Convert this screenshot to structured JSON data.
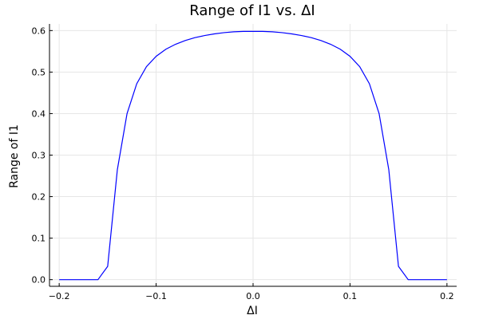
{
  "chart_data": {
    "type": "line",
    "title": "Range of I1 vs. ΔI",
    "xlabel": "ΔI",
    "ylabel": "Range of I1",
    "xlim": [
      -0.21,
      0.21
    ],
    "ylim": [
      -0.016,
      0.616
    ],
    "xticks": [
      -0.2,
      -0.1,
      0.0,
      0.1,
      0.2
    ],
    "xtick_labels": [
      "−0.2",
      "−0.1",
      "0.0",
      "0.1",
      "0.2"
    ],
    "yticks": [
      0.0,
      0.1,
      0.2,
      0.3,
      0.4,
      0.5,
      0.6
    ],
    "ytick_labels": [
      "0.0",
      "0.1",
      "0.2",
      "0.3",
      "0.4",
      "0.5",
      "0.6"
    ],
    "grid": true,
    "legend": "none",
    "series": [
      {
        "color": "#0000ff",
        "x": [
          -0.2,
          -0.19,
          -0.18,
          -0.17,
          -0.16,
          -0.15,
          -0.14,
          -0.13,
          -0.12,
          -0.11,
          -0.1,
          -0.09,
          -0.08,
          -0.07,
          -0.06,
          -0.05,
          -0.04,
          -0.03,
          -0.02,
          -0.01,
          0.0,
          0.01,
          0.02,
          0.03,
          0.04,
          0.05,
          0.06,
          0.07,
          0.08,
          0.09,
          0.1,
          0.11,
          0.12,
          0.13,
          0.14,
          0.15,
          0.16,
          0.17,
          0.18,
          0.19,
          0.2
        ],
        "y": [
          0.0,
          0.0,
          0.0,
          0.0,
          0.0,
          0.032,
          0.265,
          0.4,
          0.472,
          0.513,
          0.538,
          0.555,
          0.567,
          0.576,
          0.583,
          0.588,
          0.592,
          0.595,
          0.597,
          0.598,
          0.598,
          0.598,
          0.597,
          0.595,
          0.592,
          0.588,
          0.583,
          0.576,
          0.567,
          0.555,
          0.538,
          0.513,
          0.472,
          0.4,
          0.265,
          0.032,
          0.0,
          0.0,
          0.0,
          0.0,
          0.0
        ]
      }
    ]
  }
}
